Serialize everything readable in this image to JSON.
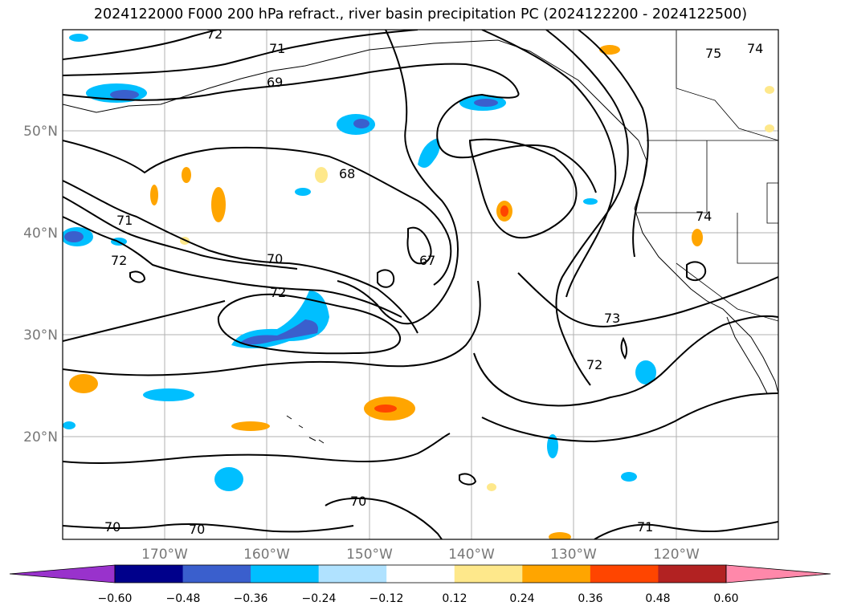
{
  "title": "2024122000 F000 200 hPa refract., river basin precipitation PC (2024122200 - 2024122500)",
  "colors": {
    "grid": "#b0b0b0",
    "tick_text": "#777777",
    "contour": "#000000"
  },
  "chart_data": {
    "type": "contour_map",
    "lat_ticks": [
      "50°N",
      "40°N",
      "30°N",
      "20°N"
    ],
    "lon_ticks": [
      "170°W",
      "160°W",
      "150°W",
      "140°W",
      "130°W",
      "120°W"
    ],
    "grid": true,
    "contour_labels": [
      "72",
      "71",
      "69",
      "68",
      "71",
      "72",
      "70",
      "67",
      "72",
      "73",
      "72",
      "70",
      "70",
      "70",
      "71",
      "75",
      "74",
      "74"
    ],
    "colorbar": {
      "ticks": [
        "−0.60",
        "−0.48",
        "−0.36",
        "−0.24",
        "−0.12",
        "0.12",
        "0.24",
        "0.36",
        "0.48",
        "0.60"
      ],
      "colors": [
        "#9932cc",
        "#00008b",
        "#3a5fcd",
        "#00bfff",
        "#b0e2ff",
        "#ffffff",
        "#fee88b",
        "#ffa500",
        "#ff4500",
        "#b22222",
        "#ff88aa"
      ],
      "extend": "both"
    }
  }
}
